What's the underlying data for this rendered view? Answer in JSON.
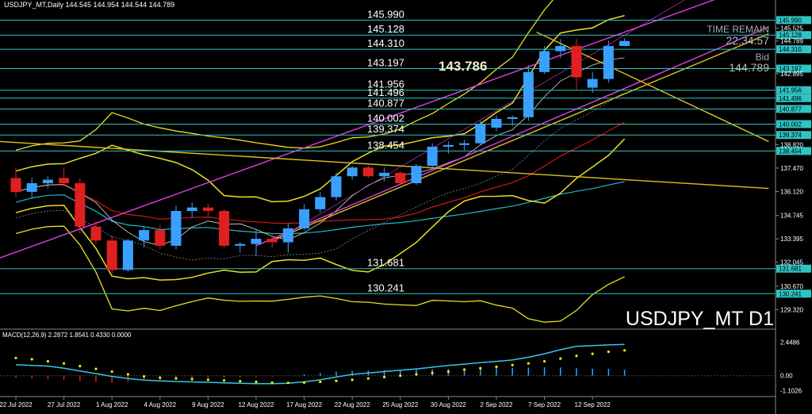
{
  "header": {
    "symbol_info": "USDJPY_MT,Daily  144.545 144.954 144.544 144.789"
  },
  "watermark": "USDJPY_MT D1",
  "timer": {
    "label": "TIME REMAIN",
    "value": "22:34:57",
    "bid_label": "Bid",
    "bid_value": "144.789"
  },
  "callout": "143.786",
  "macd_label": "MACD(12,26,9) 2.2872 1.8541 0.4330 0.0000",
  "colors": {
    "background": "#000000",
    "bull": "#3aa0ff",
    "bear": "#e02020",
    "level_line": "#2ec4c4",
    "band": "#e8e020",
    "channel": "#e040e0",
    "trend": "#e0c020",
    "ma_red": "#d01818",
    "ma_teal": "#20b8c8",
    "ma_white": "#d8d8d8",
    "price_tag": "#2ec4c4",
    "text": "#ffffff"
  },
  "chart_data": {
    "type": "candlestick",
    "ylim": [
      128.7,
      146.6
    ],
    "price_axis_ticks": [
      "145.525",
      "144.789",
      "142.895",
      "138.820",
      "137.470",
      "136.120",
      "134.745",
      "133.395",
      "132.045",
      "130.670",
      "129.320"
    ],
    "x_ticks": [
      "22 Jul 2022",
      "27 Jul 2022",
      "1 Aug 2022",
      "4 Aug 2022",
      "9 Aug 2022",
      "12 Aug 2022",
      "17 Aug 2022",
      "22 Aug 2022",
      "25 Aug 2022",
      "30 Aug 2022",
      "2 Sep 2022",
      "7 Sep 2022",
      "12 Sep 2022"
    ],
    "levels": [
      {
        "value": 145.99,
        "label": "145.990",
        "tag": "145.990"
      },
      {
        "value": 145.128,
        "label": "145.128",
        "tag": "145.128"
      },
      {
        "value": 144.31,
        "label": "144.310",
        "tag": "144.310"
      },
      {
        "value": 143.197,
        "label": "143.197",
        "tag": "143.197"
      },
      {
        "value": 141.956,
        "label": "141.956",
        "tag": "141.956"
      },
      {
        "value": 141.496,
        "label": "141.496",
        "tag": "141.496"
      },
      {
        "value": 140.877,
        "label": "140.877",
        "tag": "140.877"
      },
      {
        "value": 140.002,
        "label": "140.002",
        "tag": "140.002"
      },
      {
        "value": 139.374,
        "label": "139.374",
        "tag": "139.374"
      },
      {
        "value": 138.454,
        "label": "138.454",
        "tag": "138.454"
      },
      {
        "value": 131.681,
        "label": "131.681",
        "tag": "131.681"
      },
      {
        "value": 130.241,
        "label": "130.241",
        "tag": "130.241"
      }
    ],
    "candles": [
      {
        "o": 136.9,
        "h": 137.5,
        "l": 135.8,
        "c": 136.1
      },
      {
        "o": 136.1,
        "h": 136.9,
        "l": 135.7,
        "c": 136.6
      },
      {
        "o": 136.6,
        "h": 137.0,
        "l": 136.3,
        "c": 136.8
      },
      {
        "o": 136.9,
        "h": 137.5,
        "l": 136.4,
        "c": 136.6
      },
      {
        "o": 136.6,
        "h": 136.9,
        "l": 133.7,
        "c": 134.1
      },
      {
        "o": 134.1,
        "h": 134.4,
        "l": 133.1,
        "c": 133.3
      },
      {
        "o": 133.3,
        "h": 133.6,
        "l": 131.4,
        "c": 131.6
      },
      {
        "o": 131.6,
        "h": 133.4,
        "l": 131.5,
        "c": 133.3
      },
      {
        "o": 133.3,
        "h": 134.1,
        "l": 132.9,
        "c": 133.9
      },
      {
        "o": 133.9,
        "h": 134.2,
        "l": 132.8,
        "c": 133.0
      },
      {
        "o": 133.0,
        "h": 135.3,
        "l": 132.8,
        "c": 135.0
      },
      {
        "o": 135.0,
        "h": 135.5,
        "l": 134.6,
        "c": 135.2
      },
      {
        "o": 135.2,
        "h": 135.4,
        "l": 134.7,
        "c": 135.0
      },
      {
        "o": 135.0,
        "h": 135.1,
        "l": 132.9,
        "c": 133.0
      },
      {
        "o": 133.0,
        "h": 133.2,
        "l": 132.6,
        "c": 133.1
      },
      {
        "o": 133.1,
        "h": 133.9,
        "l": 132.4,
        "c": 133.4
      },
      {
        "o": 133.4,
        "h": 133.7,
        "l": 132.9,
        "c": 133.2
      },
      {
        "o": 133.2,
        "h": 134.3,
        "l": 132.6,
        "c": 134.0
      },
      {
        "o": 134.0,
        "h": 135.4,
        "l": 133.9,
        "c": 135.1
      },
      {
        "o": 135.1,
        "h": 136.1,
        "l": 134.9,
        "c": 135.8
      },
      {
        "o": 135.8,
        "h": 137.2,
        "l": 135.6,
        "c": 137.0
      },
      {
        "o": 137.0,
        "h": 137.6,
        "l": 136.8,
        "c": 137.5
      },
      {
        "o": 137.5,
        "h": 137.6,
        "l": 136.9,
        "c": 137.0
      },
      {
        "o": 137.0,
        "h": 137.5,
        "l": 136.7,
        "c": 137.2
      },
      {
        "o": 137.2,
        "h": 137.3,
        "l": 136.5,
        "c": 136.6
      },
      {
        "o": 136.6,
        "h": 137.7,
        "l": 136.5,
        "c": 137.6
      },
      {
        "o": 137.6,
        "h": 138.9,
        "l": 137.4,
        "c": 138.7
      },
      {
        "o": 138.7,
        "h": 139.0,
        "l": 138.3,
        "c": 138.8
      },
      {
        "o": 138.8,
        "h": 139.1,
        "l": 138.5,
        "c": 138.9
      },
      {
        "o": 138.9,
        "h": 140.2,
        "l": 138.8,
        "c": 140.0
      },
      {
        "o": 139.8,
        "h": 140.5,
        "l": 139.6,
        "c": 140.3
      },
      {
        "o": 140.3,
        "h": 140.5,
        "l": 139.9,
        "c": 140.4
      },
      {
        "o": 140.4,
        "h": 143.4,
        "l": 140.2,
        "c": 143.0
      },
      {
        "o": 143.0,
        "h": 144.5,
        "l": 142.9,
        "c": 144.2
      },
      {
        "o": 144.2,
        "h": 144.9,
        "l": 143.8,
        "c": 144.5
      },
      {
        "o": 144.5,
        "h": 144.9,
        "l": 141.9,
        "c": 142.7
      },
      {
        "o": 142.1,
        "h": 143.0,
        "l": 141.8,
        "c": 142.6
      },
      {
        "o": 142.6,
        "h": 144.8,
        "l": 142.4,
        "c": 144.5
      },
      {
        "o": 144.5,
        "h": 144.95,
        "l": 144.54,
        "c": 144.79
      }
    ],
    "macd": {
      "ylim": [
        -1.35,
        2.65
      ],
      "axis_ticks": [
        "2.4486",
        "0.00",
        "-1.1026"
      ],
      "histogram": [
        -0.15,
        -0.2,
        -0.25,
        -0.3,
        -0.4,
        -0.45,
        -0.5,
        -0.45,
        -0.35,
        -0.3,
        -0.25,
        -0.2,
        -0.15,
        -0.15,
        -0.12,
        -0.1,
        -0.05,
        0.02,
        0.1,
        0.2,
        0.3,
        0.35,
        0.38,
        0.4,
        0.42,
        0.44,
        0.48,
        0.5,
        0.52,
        0.55,
        0.55,
        0.58,
        0.6,
        0.62,
        0.6,
        0.55,
        0.52,
        0.5,
        0.43
      ],
      "macd_line": [
        0.8,
        0.75,
        0.7,
        0.55,
        0.35,
        0.15,
        -0.05,
        -0.2,
        -0.32,
        -0.38,
        -0.42,
        -0.45,
        -0.48,
        -0.52,
        -0.55,
        -0.58,
        -0.58,
        -0.55,
        -0.45,
        -0.3,
        -0.1,
        0.1,
        0.2,
        0.3,
        0.4,
        0.5,
        0.62,
        0.75,
        0.85,
        0.95,
        1.05,
        1.15,
        1.35,
        1.6,
        1.9,
        2.15,
        2.2,
        2.25,
        2.29
      ],
      "signal_line": [
        1.3,
        1.2,
        1.05,
        0.9,
        0.7,
        0.5,
        0.3,
        0.1,
        -0.05,
        -0.15,
        -0.2,
        -0.25,
        -0.3,
        -0.35,
        -0.4,
        -0.45,
        -0.5,
        -0.52,
        -0.5,
        -0.45,
        -0.38,
        -0.3,
        -0.2,
        -0.1,
        0.0,
        0.1,
        0.2,
        0.3,
        0.45,
        0.55,
        0.65,
        0.78,
        0.9,
        1.05,
        1.25,
        1.45,
        1.6,
        1.75,
        1.85
      ]
    }
  }
}
